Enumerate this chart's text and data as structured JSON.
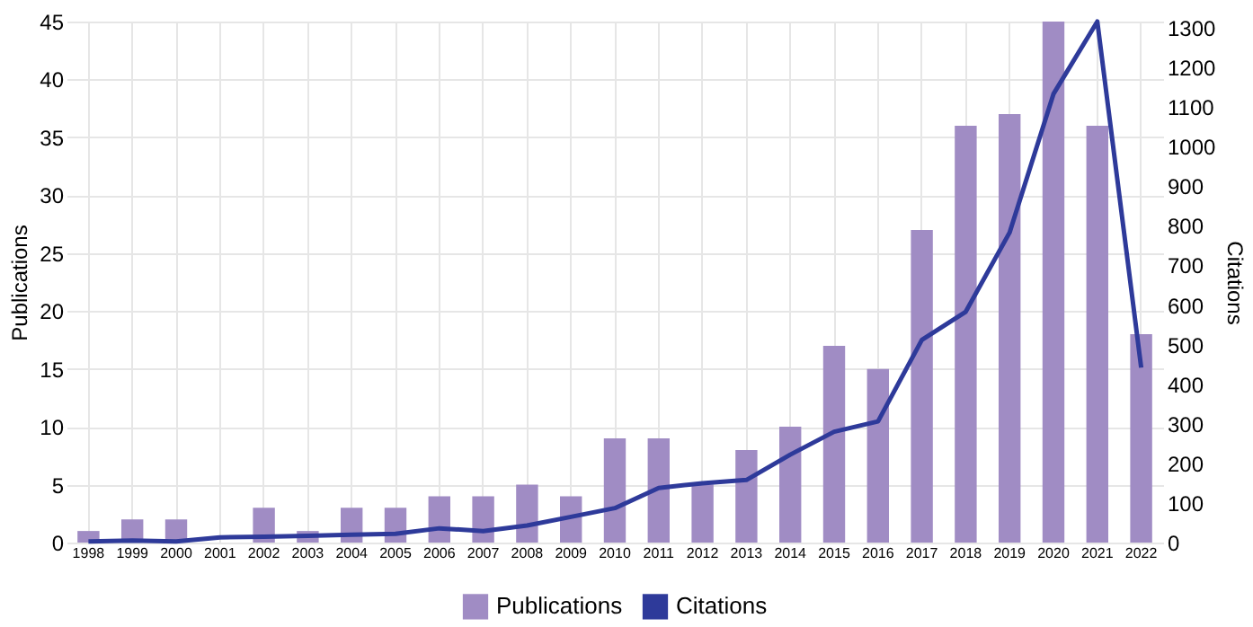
{
  "chart_data": {
    "type": "bar",
    "xlabel": null,
    "ylabel": "Publications",
    "y2label": "Citations",
    "categories": [
      "1998",
      "1999",
      "2000",
      "2001",
      "2002",
      "2003",
      "2004",
      "2005",
      "2006",
      "2007",
      "2008",
      "2009",
      "2010",
      "2011",
      "2012",
      "2013",
      "2014",
      "2015",
      "2016",
      "2017",
      "2018",
      "2019",
      "2020",
      "2021",
      "2022"
    ],
    "series": [
      {
        "name": "Publications",
        "color": "#a08cc4",
        "values": [
          1,
          2,
          2,
          0,
          3,
          1,
          3,
          3,
          4,
          4,
          5,
          4,
          9,
          9,
          5,
          8,
          10,
          17,
          15,
          27,
          36,
          37,
          45,
          36,
          18
        ]
      },
      {
        "name": "Citations",
        "type": "line",
        "axis": "y2",
        "color": "#2e3a9a",
        "values": [
          3,
          5,
          3,
          13,
          15,
          17,
          20,
          22,
          36,
          29,
          43,
          65,
          87,
          138,
          150,
          158,
          222,
          280,
          306,
          512,
          583,
          783,
          1133,
          1316,
          442
        ]
      }
    ],
    "ylim": [
      0,
      45
    ],
    "yticks": [
      0,
      5,
      10,
      15,
      20,
      25,
      30,
      35,
      40,
      45
    ],
    "y2lim": [
      0,
      1316
    ],
    "y2ticks": [
      0,
      100,
      200,
      300,
      400,
      500,
      600,
      700,
      800,
      900,
      1000,
      1100,
      1200,
      1300
    ],
    "grid": true,
    "legend": "bottom",
    "marker": "none",
    "line_style": "solid"
  }
}
